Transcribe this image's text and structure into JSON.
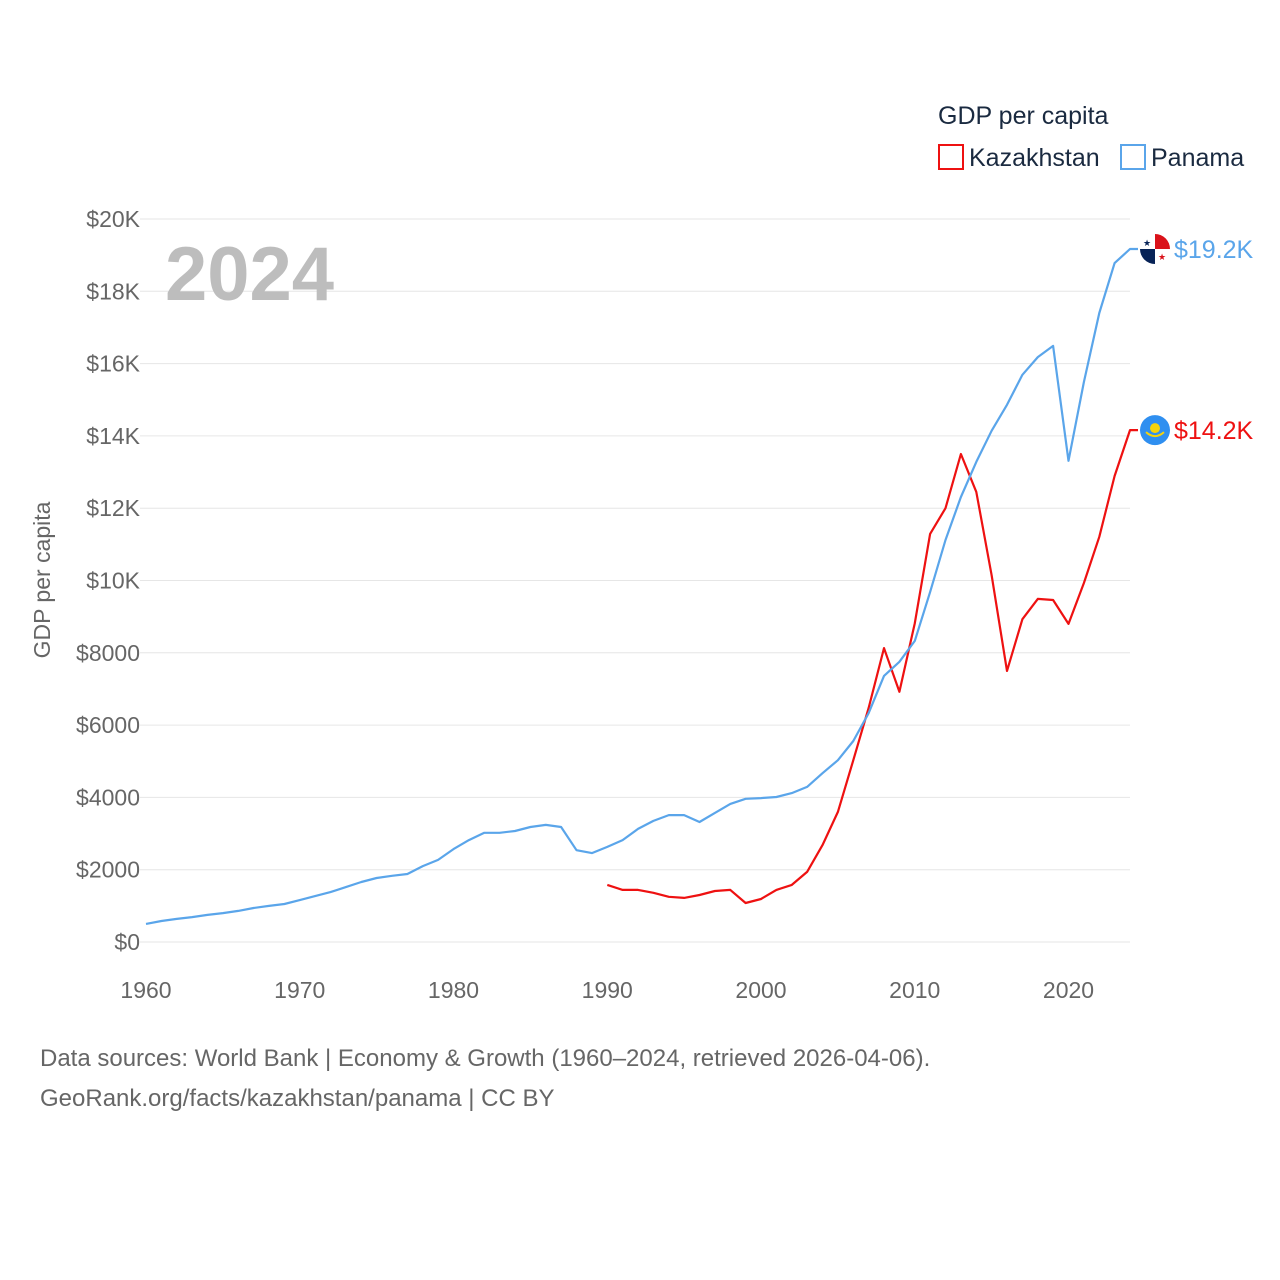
{
  "chart_data": {
    "type": "line",
    "title": "GDP per capita",
    "ylabel": "GDP per capita",
    "xlabel": "",
    "year_watermark": "2024",
    "xlim": [
      1960,
      2024
    ],
    "ylim": [
      0,
      20000
    ],
    "x_ticks": [
      1960,
      1970,
      1980,
      1990,
      2000,
      2010,
      2020
    ],
    "y_ticks": [
      0,
      2000,
      4000,
      6000,
      8000,
      10000,
      12000,
      14000,
      16000,
      18000,
      20000
    ],
    "y_tick_labels": [
      "$0",
      "$2000",
      "$4000",
      "$6000",
      "$8000",
      "$10K",
      "$12K",
      "$14K",
      "$16K",
      "$18K",
      "$20K"
    ],
    "grid": true,
    "legend_position": "top-right",
    "series": [
      {
        "name": "Kazakhstan",
        "color": "#ee1111",
        "end_label": "$14.2K",
        "flag": "kazakhstan-flag",
        "x": [
          1990,
          1991,
          1992,
          1993,
          1994,
          1995,
          1996,
          1997,
          1998,
          1999,
          2000,
          2001,
          2002,
          2003,
          2004,
          2005,
          2006,
          2007,
          2008,
          2009,
          2010,
          2011,
          2012,
          2013,
          2014,
          2015,
          2016,
          2017,
          2018,
          2019,
          2020,
          2021,
          2022,
          2023,
          2024
        ],
        "values": [
          1580,
          1440,
          1440,
          1360,
          1250,
          1220,
          1300,
          1410,
          1440,
          1080,
          1190,
          1440,
          1580,
          1940,
          2680,
          3600,
          5030,
          6470,
          8130,
          6920,
          8820,
          11290,
          12000,
          13500,
          12450,
          10150,
          7500,
          8930,
          9490,
          9460,
          8800,
          9930,
          11210,
          12890,
          14160
        ]
      },
      {
        "name": "Panama",
        "color": "#5aa5ea",
        "end_label": "$19.2K",
        "flag": "panama-flag",
        "x": [
          1960,
          1961,
          1962,
          1963,
          1964,
          1965,
          1966,
          1967,
          1968,
          1969,
          1970,
          1971,
          1972,
          1973,
          1974,
          1975,
          1976,
          1977,
          1978,
          1979,
          1980,
          1981,
          1982,
          1983,
          1984,
          1985,
          1986,
          1987,
          1988,
          1989,
          1990,
          1991,
          1992,
          1993,
          1994,
          1995,
          1996,
          1997,
          1998,
          1999,
          2000,
          2001,
          2002,
          2003,
          2004,
          2005,
          2006,
          2007,
          2008,
          2009,
          2010,
          2011,
          2012,
          2013,
          2014,
          2015,
          2016,
          2017,
          2018,
          2019,
          2020,
          2021,
          2022,
          2023,
          2024
        ],
        "values": [
          500,
          580,
          640,
          690,
          750,
          800,
          860,
          940,
          1000,
          1050,
          1160,
          1270,
          1380,
          1520,
          1660,
          1770,
          1830,
          1880,
          2100,
          2270,
          2570,
          2820,
          3020,
          3020,
          3070,
          3180,
          3240,
          3180,
          2540,
          2460,
          2630,
          2820,
          3130,
          3350,
          3510,
          3510,
          3320,
          3570,
          3820,
          3960,
          3980,
          4010,
          4120,
          4290,
          4670,
          5030,
          5560,
          6330,
          7360,
          7750,
          8330,
          9680,
          11120,
          12310,
          13280,
          14140,
          14860,
          15690,
          16180,
          16490,
          13310,
          15490,
          17400,
          18780,
          19170
        ]
      }
    ]
  },
  "footer": {
    "line1": "Data sources: World Bank | Economy & Growth (1960–2024, retrieved 2026-04-06).",
    "line2": "GeoRank.org/facts/kazakhstan/panama | CC BY"
  }
}
